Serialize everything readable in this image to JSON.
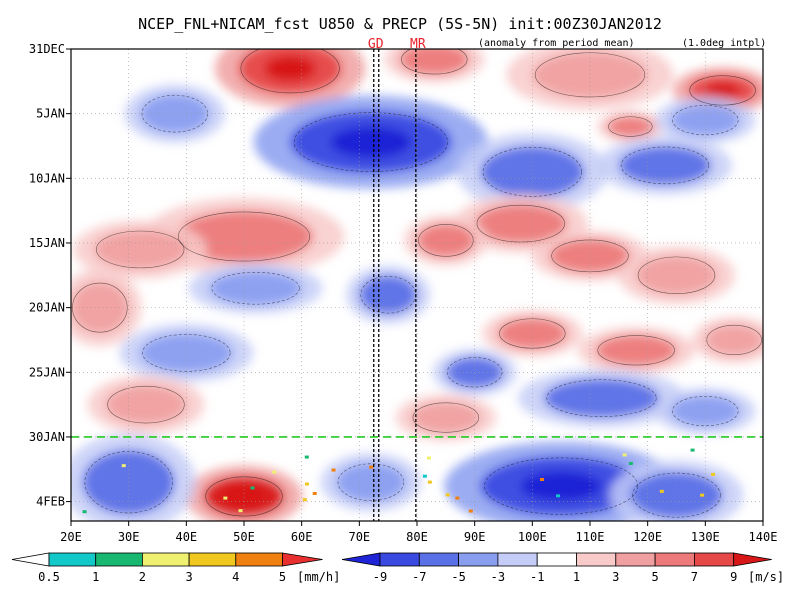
{
  "chart_data": {
    "type": "heatmap",
    "title": "NCEP_FNL+NICAM_fcst U850 & PRECP (5S-5N) init:00Z30JAN2012",
    "subtitle_left": "(anomaly from period mean)",
    "subtitle_right": "(1.0deg intpl)",
    "x_ticks": [
      {
        "value": 20,
        "label": "20E"
      },
      {
        "value": 30,
        "label": "30E"
      },
      {
        "value": 40,
        "label": "40E"
      },
      {
        "value": 50,
        "label": "50E"
      },
      {
        "value": 60,
        "label": "60E"
      },
      {
        "value": 70,
        "label": "70E"
      },
      {
        "value": 80,
        "label": "80E"
      },
      {
        "value": 90,
        "label": "90E"
      },
      {
        "value": 100,
        "label": "100E"
      },
      {
        "value": 110,
        "label": "110E"
      },
      {
        "value": 120,
        "label": "120E"
      },
      {
        "value": 130,
        "label": "130E"
      },
      {
        "value": 140,
        "label": "140E"
      }
    ],
    "y_ticks": [
      {
        "value": 0,
        "label": "31DEC"
      },
      {
        "value": 5,
        "label": "5JAN"
      },
      {
        "value": 10,
        "label": "10JAN"
      },
      {
        "value": 15,
        "label": "15JAN"
      },
      {
        "value": 20,
        "label": "20JAN"
      },
      {
        "value": 25,
        "label": "25JAN"
      },
      {
        "value": 30,
        "label": "30JAN"
      },
      {
        "value": 35,
        "label": "4FEB"
      }
    ],
    "xlim": [
      20,
      140
    ],
    "ylim_days": [
      0,
      36.5
    ],
    "forecast_start_day": 30,
    "markers": [
      {
        "label": "GD",
        "lon": 72.5
      },
      {
        "label": "MR",
        "lon": 79.8
      }
    ],
    "u850_colorbar": {
      "ticks": [
        "-9",
        "-7",
        "-5",
        "-3",
        "-1",
        "1",
        "3",
        "5",
        "7",
        "9"
      ],
      "colors": [
        "#1f24d6",
        "#3a4ae0",
        "#5a70e6",
        "#8a9ef0",
        "#c4ccf7",
        "#ffffff",
        "#f8caca",
        "#f0a0a0",
        "#ec7a7a",
        "#e64848",
        "#d81818"
      ],
      "unit": "[m/s]"
    },
    "precip_colorbar": {
      "ticks": [
        "0.5",
        "1",
        "2",
        "3",
        "4",
        "5"
      ],
      "colors": [
        "#ffffff",
        "#12c8c8",
        "#18b870",
        "#f0f070",
        "#f0c820",
        "#f08010",
        "#e83030"
      ],
      "unit": "[mm/h]"
    },
    "u850_anomaly_features": [
      {
        "lon": 58,
        "day": 1.5,
        "value": 6,
        "rx": 9,
        "ry": 2.0
      },
      {
        "lon": 83,
        "day": 0.8,
        "value": 4,
        "rx": 6,
        "ry": 1.2
      },
      {
        "lon": 110,
        "day": 2.0,
        "value": 3,
        "rx": 10,
        "ry": 1.8
      },
      {
        "lon": 133,
        "day": 3.2,
        "value": 6,
        "rx": 6,
        "ry": 1.2
      },
      {
        "lon": 117,
        "day": 6.0,
        "value": 5,
        "rx": 4,
        "ry": 0.8
      },
      {
        "lon": 72,
        "day": 7.2,
        "value": -6,
        "rx": 14,
        "ry": 2.4
      },
      {
        "lon": 100,
        "day": 9.5,
        "value": -5,
        "rx": 9,
        "ry": 2.0
      },
      {
        "lon": 123,
        "day": 9.0,
        "value": -4,
        "rx": 8,
        "ry": 1.5
      },
      {
        "lon": 130,
        "day": 5.5,
        "value": -3,
        "rx": 6,
        "ry": 1.2
      },
      {
        "lon": 38,
        "day": 5.0,
        "value": -3,
        "rx": 6,
        "ry": 1.5
      },
      {
        "lon": 50,
        "day": 14.5,
        "value": 5,
        "rx": 12,
        "ry": 2.0
      },
      {
        "lon": 32,
        "day": 15.5,
        "value": 3,
        "rx": 8,
        "ry": 1.5
      },
      {
        "lon": 98,
        "day": 13.5,
        "value": 4,
        "rx": 8,
        "ry": 1.5
      },
      {
        "lon": 85,
        "day": 14.8,
        "value": 4,
        "rx": 5,
        "ry": 1.3
      },
      {
        "lon": 110,
        "day": 16.0,
        "value": 4,
        "rx": 7,
        "ry": 1.3
      },
      {
        "lon": 125,
        "day": 17.5,
        "value": 3,
        "rx": 7,
        "ry": 1.5
      },
      {
        "lon": 25,
        "day": 20.0,
        "value": 3,
        "rx": 5,
        "ry": 2.0
      },
      {
        "lon": 52,
        "day": 18.5,
        "value": -3,
        "rx": 8,
        "ry": 1.3
      },
      {
        "lon": 75,
        "day": 19.0,
        "value": -4,
        "rx": 5,
        "ry": 1.5
      },
      {
        "lon": 100,
        "day": 22.0,
        "value": 4,
        "rx": 6,
        "ry": 1.2
      },
      {
        "lon": 118,
        "day": 23.3,
        "value": 5,
        "rx": 7,
        "ry": 1.2
      },
      {
        "lon": 135,
        "day": 22.5,
        "value": 3,
        "rx": 5,
        "ry": 1.2
      },
      {
        "lon": 40,
        "day": 23.5,
        "value": -3,
        "rx": 8,
        "ry": 1.5
      },
      {
        "lon": 90,
        "day": 25.0,
        "value": -4,
        "rx": 5,
        "ry": 1.2
      },
      {
        "lon": 33,
        "day": 27.5,
        "value": 3,
        "rx": 7,
        "ry": 1.5
      },
      {
        "lon": 85,
        "day": 28.5,
        "value": 3,
        "rx": 6,
        "ry": 1.2
      },
      {
        "lon": 112,
        "day": 27.0,
        "value": -4,
        "rx": 10,
        "ry": 1.5
      },
      {
        "lon": 130,
        "day": 28.0,
        "value": -3,
        "rx": 6,
        "ry": 1.2
      },
      {
        "lon": 50,
        "day": 34.6,
        "value": 9,
        "rx": 7,
        "ry": 1.6
      },
      {
        "lon": 30,
        "day": 33.5,
        "value": -5,
        "rx": 8,
        "ry": 2.5
      },
      {
        "lon": 105,
        "day": 33.8,
        "value": -7,
        "rx": 14,
        "ry": 2.3
      },
      {
        "lon": 125,
        "day": 34.5,
        "value": -5,
        "rx": 8,
        "ry": 1.8
      },
      {
        "lon": 72,
        "day": 33.5,
        "value": -3,
        "rx": 6,
        "ry": 1.5
      }
    ]
  }
}
